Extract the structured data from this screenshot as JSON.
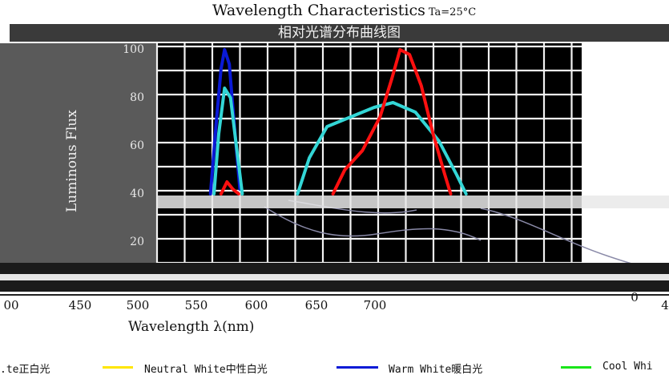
{
  "header": {
    "title": "Wavelength Characteristics",
    "condition": "Ta=25°C",
    "subtitle": "相对光谱分布曲线图"
  },
  "chart_data": {
    "type": "line",
    "title": "Wavelength Characteristics",
    "xlabel": "Wavelength λ(nm)",
    "ylabel": "Luminous Flux",
    "xlim": [
      400,
      800
    ],
    "ylim": [
      0,
      100
    ],
    "grid": true,
    "x_ticks": [
      "00",
      "450",
      "500",
      "550",
      "600",
      "650",
      "700",
      "0",
      "4"
    ],
    "y_ticks": [
      "100",
      "80",
      "60",
      "40",
      "20"
    ],
    "series": [
      {
        "name": "Warm White暖白光",
        "color": "#0a1ad6",
        "x": [
          561,
          566,
          570,
          573,
          577,
          581,
          586
        ],
        "y": [
          40,
          70,
          92,
          100,
          94,
          70,
          42
        ]
      },
      {
        "name": "Cool Whi",
        "color": "#33d6d6",
        "x": [
          564,
          568,
          573,
          578,
          583,
          588,
          635,
          645,
          660,
          680,
          700,
          716,
          735,
          755,
          770,
          778
        ],
        "y": [
          40,
          65,
          84,
          80,
          60,
          40,
          40,
          55,
          68,
          72,
          76,
          78,
          74,
          62,
          48,
          40
        ]
      },
      {
        "name": "",
        "color": "#ff1010",
        "x": [
          570,
          575,
          580,
          585,
          665,
          675,
          690,
          705,
          715,
          722,
          730,
          740,
          750,
          760,
          765
        ],
        "y": [
          40,
          45,
          42,
          40,
          40,
          50,
          58,
          72,
          88,
          100,
          98,
          85,
          65,
          48,
          40
        ]
      }
    ]
  },
  "legend": {
    "items": [
      {
        "label": ".te正白光",
        "color": ""
      },
      {
        "label": "Neutral White中性白光",
        "color": "#ffe600"
      },
      {
        "label": "Warm White暖白光",
        "color": "#0a1ad6"
      },
      {
        "label": "Cool Whi",
        "color": "#19e619"
      }
    ]
  }
}
